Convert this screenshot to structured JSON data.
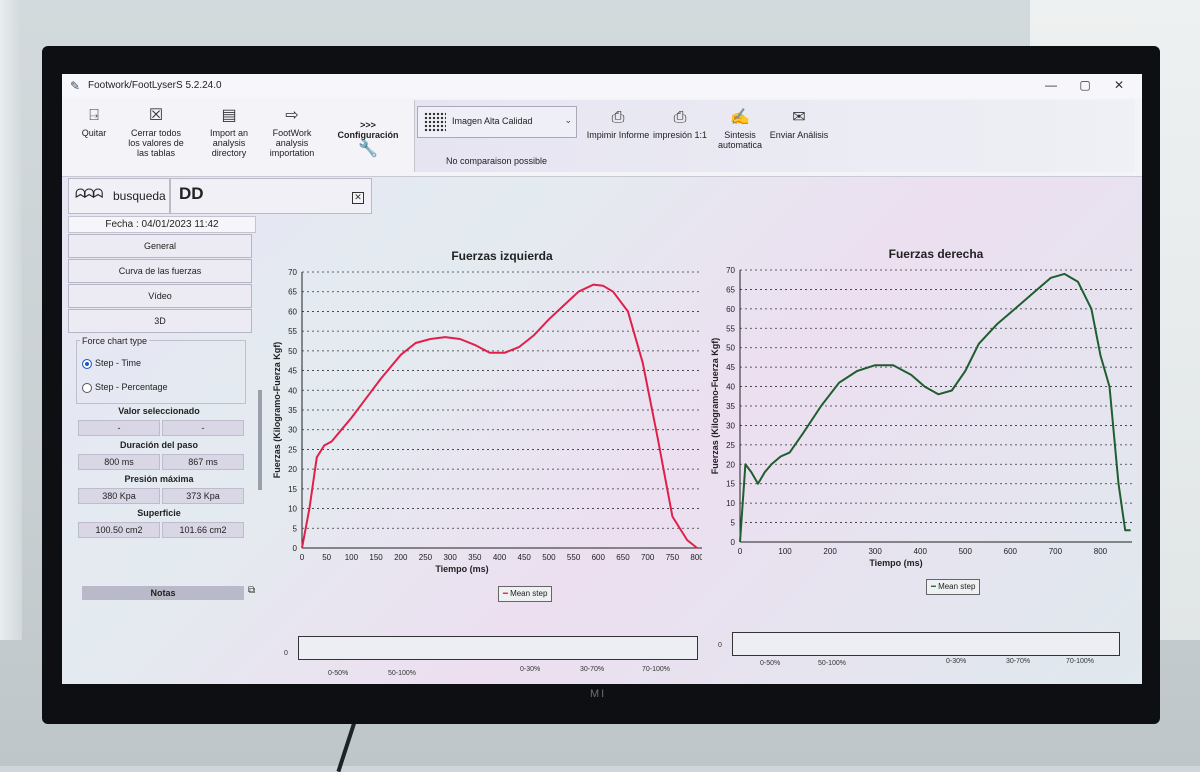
{
  "window": {
    "title": "Footwork/FootLyserS 5.2.24.0"
  },
  "toolbar": {
    "quit": "Quitar",
    "close_all": "Cerrar todos los valores de las tablas",
    "import_dir": "Import an analysis directory",
    "footwork_import": "FootWork analysis importation",
    "config_arrows": ">>>",
    "config": "Configuración",
    "quality": "Imagen Alta Calidad",
    "no_compare": "No comparaison possible",
    "print_report": "Impimir Informe",
    "print_11": "impresión 1:1",
    "synthesis": "Sintesis automatica",
    "send": "Enviar Análisis"
  },
  "tabs": {
    "search": "busqueda",
    "feet_logo": "DD"
  },
  "left_panel": {
    "date": "Fecha : 04/01/2023 11:42",
    "nav": [
      "General",
      "Curva de las fuerzas",
      "Vídeo",
      "3D"
    ],
    "force_chart_type": "Force chart type",
    "radio_time": "Step - Time",
    "radio_percent": "Step - Percentage",
    "selected_value": "Valor seleccionado",
    "selected_left": "-",
    "selected_right": "-",
    "duration": "Duración del paso",
    "duration_left": "800 ms",
    "duration_right": "867 ms",
    "pressure": "Presión máxima",
    "pressure_left": "380 Kpa",
    "pressure_right": "373 Kpa",
    "surface": "Superficie",
    "surface_left": "100.50 cm2",
    "surface_right": "101.66 cm2",
    "notes": "Notas"
  },
  "colors": {
    "left_curve": "#e0204a",
    "right_curve": "#1f5e2f"
  },
  "chart_data": [
    {
      "type": "line",
      "title": "Fuerzas izquierda",
      "xlabel": "Tiempo  (ms)",
      "ylabel": "Fuerzas (Kilogramo-Fuerza Kgf)",
      "xlim": [
        0,
        810
      ],
      "ylim": [
        0,
        70
      ],
      "xticks": [
        0,
        50,
        100,
        150,
        200,
        250,
        300,
        350,
        400,
        450,
        500,
        550,
        600,
        650,
        700,
        750,
        800
      ],
      "yticks": [
        0,
        5,
        10,
        15,
        20,
        25,
        30,
        35,
        40,
        45,
        50,
        55,
        60,
        65,
        70
      ],
      "grid": true,
      "legend": "Mean step",
      "series": [
        {
          "name": "Mean step",
          "x": [
            0,
            15,
            30,
            45,
            60,
            80,
            100,
            130,
            160,
            200,
            230,
            260,
            290,
            320,
            350,
            380,
            410,
            440,
            470,
            500,
            530,
            560,
            590,
            610,
            630,
            660,
            690,
            720,
            750,
            780,
            800
          ],
          "y": [
            0,
            10,
            23,
            26,
            27,
            30,
            33,
            38,
            43,
            49,
            52,
            53,
            53.5,
            53,
            51.5,
            49.5,
            49.5,
            51,
            54,
            58,
            61.5,
            65,
            66.8,
            66.5,
            65,
            60,
            47,
            28,
            8,
            2,
            0
          ]
        }
      ]
    },
    {
      "type": "line",
      "title": "Fuerzas derecha",
      "xlabel": "Tiempo  (ms)",
      "ylabel": "Fuerzas (Kilogramo-Fuerza Kgf)",
      "xlim": [
        0,
        870
      ],
      "ylim": [
        0,
        70
      ],
      "xticks": [
        0,
        100,
        200,
        300,
        400,
        500,
        600,
        700,
        800
      ],
      "yticks": [
        0,
        5,
        10,
        15,
        20,
        25,
        30,
        35,
        40,
        45,
        50,
        55,
        60,
        65,
        70
      ],
      "grid": true,
      "legend": "Mean step",
      "series": [
        {
          "name": "Mean step",
          "x": [
            0,
            12,
            25,
            40,
            55,
            70,
            90,
            110,
            140,
            180,
            220,
            260,
            300,
            340,
            380,
            410,
            440,
            470,
            500,
            530,
            570,
            610,
            650,
            690,
            720,
            750,
            780,
            800,
            820,
            840,
            855,
            867
          ],
          "y": [
            0,
            20,
            18,
            15,
            18,
            20,
            22,
            23,
            28,
            35,
            41,
            44,
            45.5,
            45.5,
            43,
            40,
            38,
            39,
            44,
            51,
            56,
            60,
            64,
            68,
            69,
            67,
            60,
            48,
            40,
            15,
            3,
            3
          ]
        }
      ]
    }
  ],
  "mini_strips": {
    "zero": "0",
    "labels": [
      "0-50%",
      "50-100%",
      "0-30%",
      "30-70%",
      "70-100%"
    ]
  },
  "tv_brand": "MI"
}
